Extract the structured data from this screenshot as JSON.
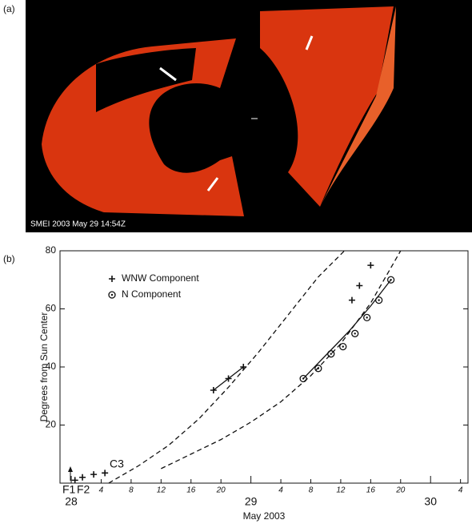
{
  "panel_a": {
    "label": "(a)",
    "caption": "SMEI 2003 May 29 14:54Z"
  },
  "chart_data": {
    "type": "scatter",
    "panel_label": "(b)",
    "y_label": "Degrees from Sun Center",
    "x_label": "May 2003",
    "xlim": [
      -1.5,
      53
    ],
    "ylim": [
      0,
      80
    ],
    "xticks": [
      4,
      8,
      12,
      16,
      20,
      {
        "value": 28,
        "label": "4"
      },
      {
        "value": 32,
        "label": "8"
      },
      {
        "value": 36,
        "label": "12"
      },
      {
        "value": 40,
        "label": "16"
      },
      {
        "value": 44,
        "label": "20"
      },
      {
        "value": 52,
        "label": "4"
      }
    ],
    "day_ticks": [
      {
        "value": 0,
        "label": "28"
      },
      {
        "value": 24,
        "label": "29"
      },
      {
        "value": 48,
        "label": "30"
      }
    ],
    "yticks": [
      20,
      40,
      60,
      80
    ],
    "legend": "upper left",
    "annotations": [
      "F1",
      "F2",
      "C3"
    ],
    "series": [
      {
        "name": "WNW Component",
        "marker": "plus",
        "color": "#111111",
        "x": [
          0.5,
          1.5,
          3,
          4.5,
          19,
          21,
          23,
          37.5,
          38.5,
          40
        ],
        "values": [
          1,
          2,
          3,
          3.5,
          32,
          36,
          40,
          63,
          68,
          75
        ]
      },
      {
        "name": "N Component",
        "marker": "circle-dot",
        "color": "#111111",
        "x": [
          31,
          33,
          34.7,
          36.3,
          37.9,
          39.5,
          41.1,
          42.7
        ],
        "values": [
          36,
          39.5,
          44.5,
          47,
          51.5,
          57,
          63,
          70
        ]
      }
    ],
    "fits": [
      {
        "style": "dashed",
        "x": [
          5,
          9,
          13,
          17,
          21,
          25,
          29,
          33,
          36.5
        ],
        "values": [
          0,
          6,
          13,
          22,
          33,
          45,
          58,
          71,
          80
        ]
      },
      {
        "style": "dashed",
        "x": [
          12,
          16,
          20,
          24,
          28,
          32,
          36,
          40,
          44
        ],
        "values": [
          5,
          10,
          15,
          21,
          28,
          37,
          48,
          62,
          80
        ]
      },
      {
        "style": "solid",
        "x": [
          19,
          21,
          23
        ],
        "values": [
          32,
          36,
          40
        ]
      },
      {
        "style": "solid",
        "x": [
          31,
          34,
          37,
          40,
          42.7
        ],
        "values": [
          36,
          44,
          52,
          61,
          70
        ]
      }
    ]
  }
}
